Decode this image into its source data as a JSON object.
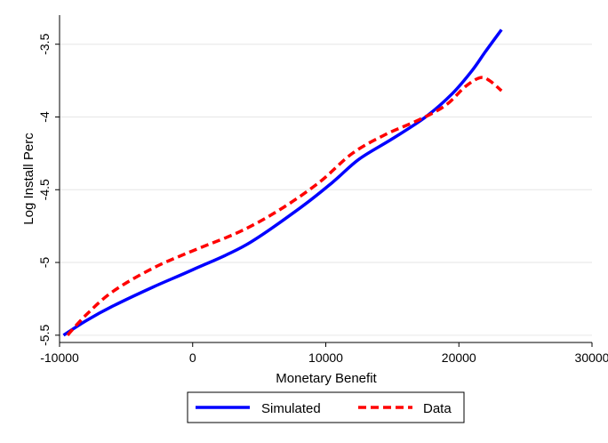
{
  "chart_data": {
    "type": "line",
    "title": "",
    "xlabel": "Monetary Benefit",
    "ylabel": "Log Install Perc",
    "xlim": [
      -10000,
      30000
    ],
    "ylim": [
      -5.55,
      -3.3
    ],
    "xticks": [
      -10000,
      0,
      10000,
      20000,
      30000
    ],
    "xtick_labels": [
      "-10000",
      "0",
      "10000",
      "20000",
      "30000"
    ],
    "yticks": [
      -5.5,
      -5,
      -4.5,
      -4,
      -3.5
    ],
    "ytick_labels": [
      "-5.5",
      "-5",
      "-4.5",
      "-4",
      "-3.5"
    ],
    "grid": true,
    "legend_position": "bottom",
    "series": [
      {
        "name": "Simulated",
        "color": "#0000ff",
        "style": "solid",
        "x": [
          -9700,
          -8000,
          -6000,
          -3000,
          0,
          4000,
          8000,
          10500,
          12500,
          15000,
          17500,
          19500,
          21000,
          22000,
          23200
        ],
        "y": [
          -5.5,
          -5.4,
          -5.3,
          -5.17,
          -5.05,
          -4.88,
          -4.63,
          -4.45,
          -4.29,
          -4.15,
          -4.0,
          -3.84,
          -3.68,
          -3.55,
          -3.4
        ]
      },
      {
        "name": "Data",
        "color": "#ff0000",
        "style": "dashed",
        "x": [
          -9400,
          -8000,
          -6000,
          -3000,
          0,
          3500,
          6500,
          9500,
          12000,
          14500,
          17000,
          19000,
          20500,
          21600,
          22300,
          23200
        ],
        "y": [
          -5.5,
          -5.36,
          -5.2,
          -5.04,
          -4.92,
          -4.79,
          -4.64,
          -4.45,
          -4.25,
          -4.12,
          -4.02,
          -3.92,
          -3.79,
          -3.73,
          -3.75,
          -3.82
        ]
      }
    ]
  }
}
